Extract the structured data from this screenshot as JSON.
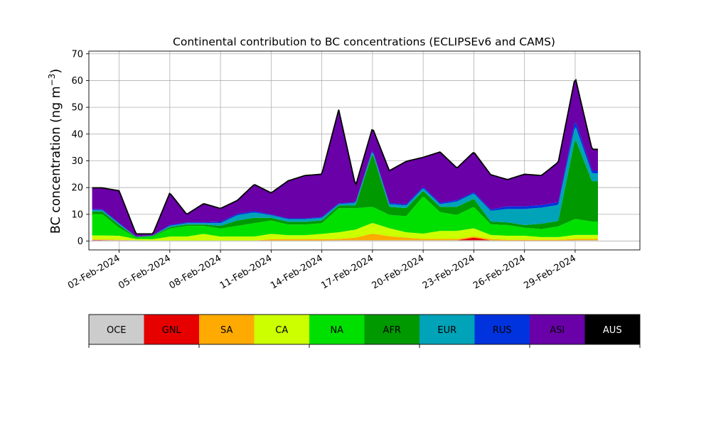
{
  "chart_data": {
    "type": "area",
    "stacked": true,
    "title": "Continental contribution to BC concentrations (ECLIPSEv6 and CAMS)",
    "ylabel": "BC concentration (ng m",
    "ylabel_sup": "−3",
    "ylabel_close": ")",
    "xlabel": "",
    "ylim": [
      -3.3,
      71
    ],
    "xlim": [
      "2024-01-31T05:00",
      "2024-03-03T20:00"
    ],
    "grid": true,
    "x_tick_labels": [
      {
        "date": "2024-02-02",
        "label": "02-Feb-2024"
      },
      {
        "date": "2024-02-05",
        "label": "05-Feb-2024"
      },
      {
        "date": "2024-02-08",
        "label": "08-Feb-2024"
      },
      {
        "date": "2024-02-11",
        "label": "11-Feb-2024"
      },
      {
        "date": "2024-02-14",
        "label": "14-Feb-2024"
      },
      {
        "date": "2024-02-17",
        "label": "17-Feb-2024"
      },
      {
        "date": "2024-02-20",
        "label": "20-Feb-2024"
      },
      {
        "date": "2024-02-23",
        "label": "23-Feb-2024"
      },
      {
        "date": "2024-02-26",
        "label": "26-Feb-2024"
      },
      {
        "date": "2024-02-29",
        "label": "29-Feb-2024"
      }
    ],
    "y_ticks": [
      0,
      10,
      20,
      30,
      40,
      50,
      60,
      70
    ],
    "x": [
      "2024-02-01",
      "2024-02-02",
      "2024-02-03",
      "2024-02-04",
      "2024-02-05",
      "2024-02-06",
      "2024-02-07",
      "2024-02-08",
      "2024-02-09",
      "2024-02-10",
      "2024-02-11",
      "2024-02-12",
      "2024-02-13",
      "2024-02-14",
      "2024-02-15",
      "2024-02-16",
      "2024-02-17",
      "2024-02-18",
      "2024-02-19",
      "2024-02-20",
      "2024-02-21",
      "2024-02-22",
      "2024-02-23",
      "2024-02-24",
      "2024-02-25",
      "2024-02-26",
      "2024-02-27",
      "2024-02-28",
      "2024-02-29",
      "2024-03-01"
    ],
    "series": [
      {
        "name": "OCE",
        "color": "#cccccc",
        "values": [
          0.3,
          0.3,
          0.3,
          0.2,
          0.2,
          0.2,
          0.2,
          0.2,
          0.2,
          0.2,
          0.2,
          0.2,
          0.2,
          0.2,
          0.3,
          0.3,
          0.3,
          0.3,
          0.3,
          0.3,
          0.3,
          0.3,
          0.3,
          0.3,
          0.2,
          0.2,
          0.2,
          0.2,
          0.3,
          0.3
        ]
      },
      {
        "name": "GNL",
        "color": "#e60000",
        "values": [
          0.1,
          0,
          0,
          0,
          0,
          0,
          0,
          0,
          0,
          0,
          0,
          0,
          0,
          0,
          0,
          0,
          0,
          0,
          0,
          0,
          0,
          0,
          1.0,
          0,
          0,
          0,
          0,
          0,
          0,
          0
        ]
      },
      {
        "name": "SA",
        "color": "#ffaa00",
        "values": [
          0.2,
          0.2,
          0,
          0,
          0,
          0,
          0,
          0,
          0,
          0,
          0.5,
          0.5,
          0.5,
          0.5,
          0.5,
          1.0,
          2.5,
          1.5,
          1.0,
          0.5,
          0.5,
          0.5,
          0.5,
          0.5,
          0.3,
          0.3,
          0.3,
          0.3,
          0.5,
          0.5
        ]
      },
      {
        "name": "CA",
        "color": "#ccff00",
        "values": [
          1.5,
          1.5,
          0.5,
          0.5,
          1.5,
          1.5,
          2.5,
          1.5,
          1.5,
          1.5,
          2.0,
          1.5,
          1.5,
          2.0,
          2.5,
          3.0,
          4.0,
          3.0,
          2.0,
          2.0,
          3.0,
          3.0,
          3.0,
          1.5,
          1.5,
          1.5,
          1.0,
          1.0,
          1.5,
          1.5
        ]
      },
      {
        "name": "NA",
        "color": "#00e000",
        "values": [
          8,
          3,
          0.5,
          1,
          3,
          4,
          3,
          3,
          4,
          5,
          5,
          4,
          4,
          4,
          9,
          8,
          6,
          5,
          6,
          14,
          7,
          6,
          8,
          4,
          4,
          3,
          3,
          4,
          6,
          5
        ]
      },
      {
        "name": "AFR",
        "color": "#009900",
        "values": [
          1,
          1,
          0.2,
          0.3,
          0.5,
          0.5,
          0.5,
          1,
          2,
          2,
          1,
          1,
          1,
          1,
          1,
          1,
          20,
          3,
          3,
          2,
          2,
          3,
          3,
          1,
          1,
          1,
          2,
          2,
          30,
          15
        ]
      },
      {
        "name": "EUR",
        "color": "#00a3b8",
        "values": [
          0.5,
          0.5,
          0.1,
          0.1,
          0.5,
          0.5,
          0.5,
          1,
          2,
          2,
          1,
          1,
          1,
          1,
          0.5,
          1,
          1,
          1,
          1,
          1,
          1,
          2,
          2,
          4,
          5,
          6,
          6,
          6,
          5,
          3
        ]
      },
      {
        "name": "RUS",
        "color": "#0033dd",
        "values": [
          0.3,
          0.3,
          0.1,
          0.1,
          0.3,
          0.3,
          0.3,
          0.5,
          0.5,
          0.5,
          0.3,
          0.3,
          0.3,
          0.3,
          0.3,
          0.3,
          0.5,
          0.5,
          0.5,
          0.5,
          0.5,
          0.5,
          0.5,
          0.5,
          1,
          1,
          1,
          1,
          2,
          1
        ]
      },
      {
        "name": "ASI",
        "color": "#6a00a8",
        "values": [
          8,
          12,
          1,
          0.5,
          12,
          3,
          7,
          5,
          5,
          10,
          8,
          14,
          16,
          16,
          35,
          6,
          8,
          12,
          16,
          11,
          19,
          12,
          15,
          13,
          10,
          12,
          11,
          15,
          16,
          8
        ]
      },
      {
        "name": "AUS",
        "color": "#000000",
        "values": [
          0,
          0,
          0,
          0,
          0,
          0,
          0,
          0,
          0,
          0,
          0,
          0,
          0,
          0,
          0,
          0,
          0,
          0,
          0,
          0,
          0,
          0,
          0,
          0,
          0,
          0,
          0,
          0,
          0,
          0
        ]
      }
    ],
    "legend_title": "",
    "colorbar_labels": [
      "OCE",
      "GNL",
      "SA",
      "CA",
      "NA",
      "AFR",
      "EUR",
      "RUS",
      "ASI",
      "AUS"
    ]
  }
}
